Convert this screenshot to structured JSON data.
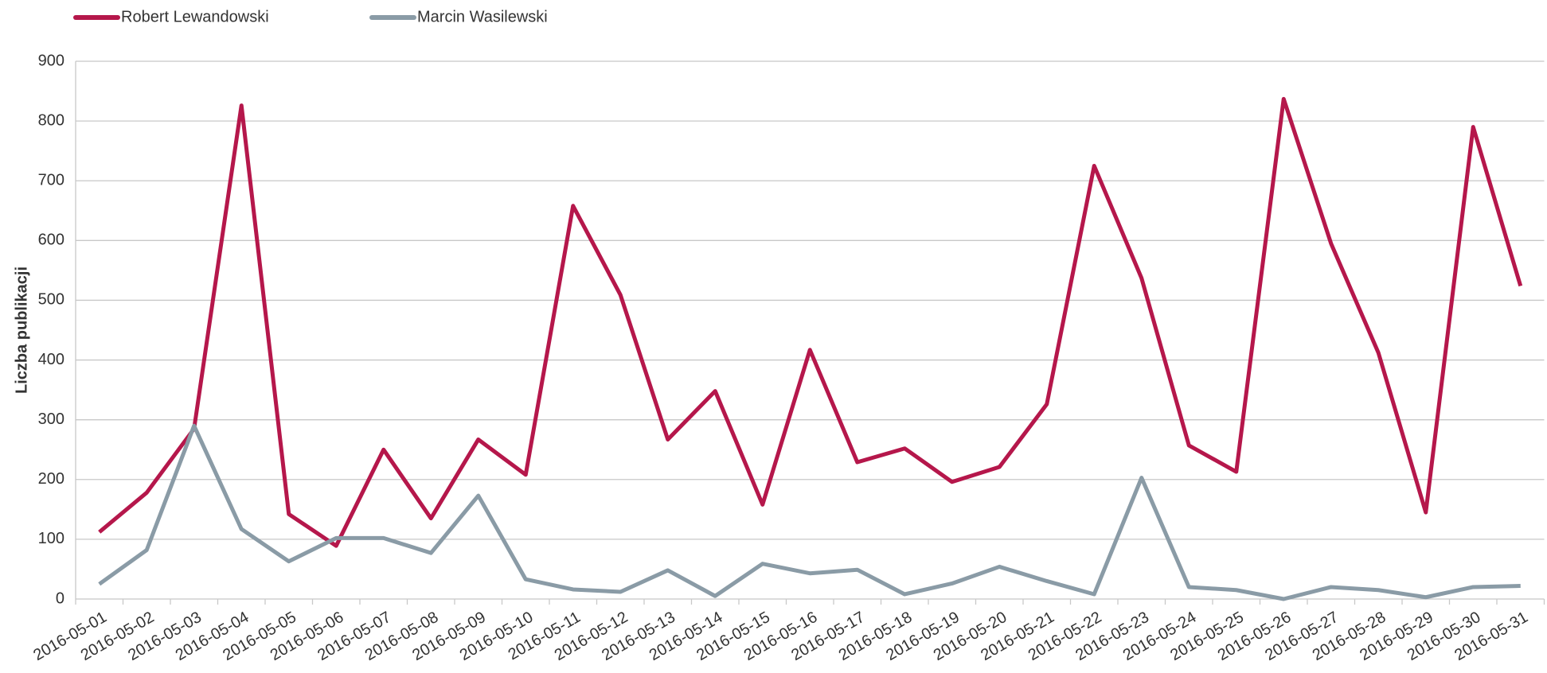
{
  "chart_data": {
    "type": "line",
    "y_label": "Liczba publikacji",
    "x": [
      "2016-05-01",
      "2016-05-02",
      "2016-05-03",
      "2016-05-04",
      "2016-05-05",
      "2016-05-06",
      "2016-05-07",
      "2016-05-08",
      "2016-05-09",
      "2016-05-10",
      "2016-05-11",
      "2016-05-12",
      "2016-05-13",
      "2016-05-14",
      "2016-05-15",
      "2016-05-16",
      "2016-05-17",
      "2016-05-18",
      "2016-05-19",
      "2016-05-20",
      "2016-05-21",
      "2016-05-22",
      "2016-05-23",
      "2016-05-24",
      "2016-05-25",
      "2016-05-26",
      "2016-05-27",
      "2016-05-28",
      "2016-05-29",
      "2016-05-30",
      "2016-05-31"
    ],
    "series": [
      {
        "name": "Robert Lewandowski",
        "color": "#b5174b",
        "values": [
          112,
          178,
          285,
          826,
          142,
          89,
          250,
          135,
          267,
          208,
          658,
          509,
          267,
          348,
          158,
          417,
          229,
          252,
          196,
          221,
          326,
          725,
          537,
          257,
          213,
          837,
          595,
          412,
          145,
          790,
          524
        ]
      },
      {
        "name": "Marcin Wasilewski",
        "color": "#8a9ba6",
        "values": [
          25,
          82,
          290,
          117,
          63,
          102,
          102,
          77,
          173,
          33,
          16,
          12,
          48,
          5,
          59,
          43,
          49,
          8,
          26,
          54,
          30,
          8,
          203,
          20,
          15,
          0,
          20,
          15,
          3,
          20,
          22
        ]
      }
    ],
    "ylim": [
      0,
      900
    ],
    "yticks": [
      0,
      100,
      200,
      300,
      400,
      500,
      600,
      700,
      800,
      900
    ],
    "grid": true
  }
}
